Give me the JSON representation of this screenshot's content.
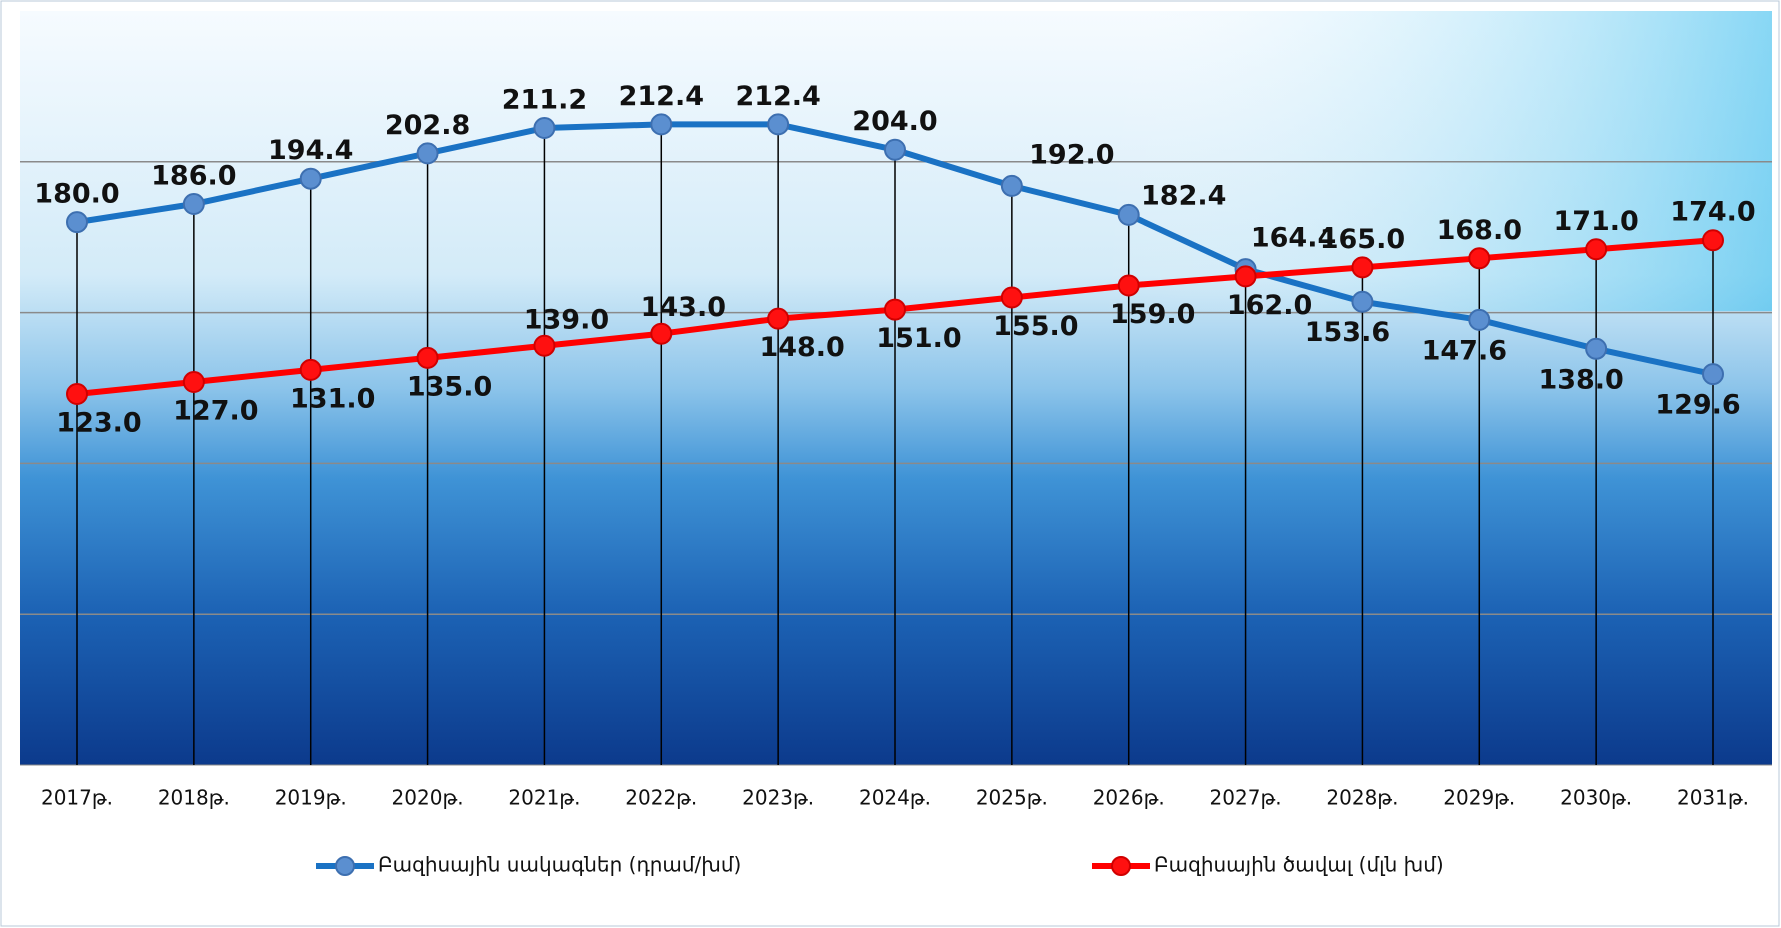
{
  "chart_data": {
    "type": "line",
    "categories": [
      "2017թ.",
      "2018թ.",
      "2019թ.",
      "2020թ.",
      "2021թ.",
      "2022թ.",
      "2023թ.",
      "2024թ.",
      "2025թ.",
      "2026թ.",
      "2027թ.",
      "2028թ.",
      "2029թ.",
      "2030թ.",
      "2031թ."
    ],
    "series": [
      {
        "name": "Բազիսային սակագներ (դրամ/խմ)",
        "color": "#1a72c4",
        "values": [
          180,
          186,
          194.4,
          202.8,
          211.2,
          212.4,
          212.4,
          204,
          192,
          182.4,
          164.4,
          153.6,
          147.6,
          138,
          129.6
        ],
        "value_labels": [
          "180.0",
          "186.0",
          "194.4",
          "202.8",
          "211.2",
          "212.4",
          "212.4",
          "204.0",
          "192.0",
          "182.4",
          "164.4",
          "153.6",
          "147.6",
          "138.0",
          "129.6"
        ]
      },
      {
        "name": "Բազիսային ծավալ (մլն խմ)",
        "color": "#ff0000",
        "values": [
          123,
          127,
          131,
          135,
          139,
          143,
          148,
          151,
          155,
          159,
          162,
          165,
          168,
          171,
          174
        ],
        "value_labels": [
          "123.0",
          "127.0",
          "131.0",
          "135.0",
          "139.0",
          "143.0",
          "148.0",
          "151.0",
          "155.0",
          "159.0",
          "162.0",
          "165.0",
          "168.0",
          "171.0",
          "174.0"
        ]
      }
    ],
    "ylim": [
      0,
      250
    ],
    "yticks": [
      0,
      50,
      100,
      150,
      200,
      250
    ],
    "grid": true
  }
}
